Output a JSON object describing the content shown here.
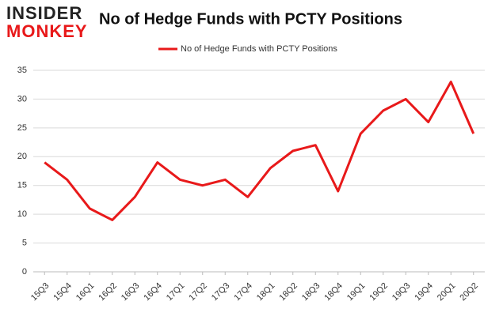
{
  "logo": {
    "top": "INSIDER",
    "bottom": "MONKEY"
  },
  "chart_data": {
    "type": "line",
    "title": "No of Hedge Funds with PCTY Positions",
    "categories": [
      "15Q3",
      "15Q4",
      "16Q1",
      "16Q2",
      "16Q3",
      "16Q4",
      "17Q1",
      "17Q2",
      "17Q3",
      "17Q4",
      "18Q1",
      "18Q2",
      "18Q3",
      "18Q4",
      "19Q1",
      "19Q2",
      "19Q3",
      "19Q4",
      "20Q1",
      "20Q2"
    ],
    "series": [
      {
        "name": "No of Hedge Funds with PCTY Positions",
        "color": "#e8191a",
        "values": [
          19,
          16,
          11,
          9,
          13,
          19,
          16,
          15,
          16,
          13,
          18,
          21,
          22,
          14,
          24,
          28,
          30,
          26,
          33,
          24
        ]
      }
    ],
    "ylim": [
      0,
      35
    ],
    "yticks": [
      0,
      5,
      10,
      15,
      20,
      25,
      30,
      35
    ],
    "grid": true,
    "legend": "top"
  }
}
